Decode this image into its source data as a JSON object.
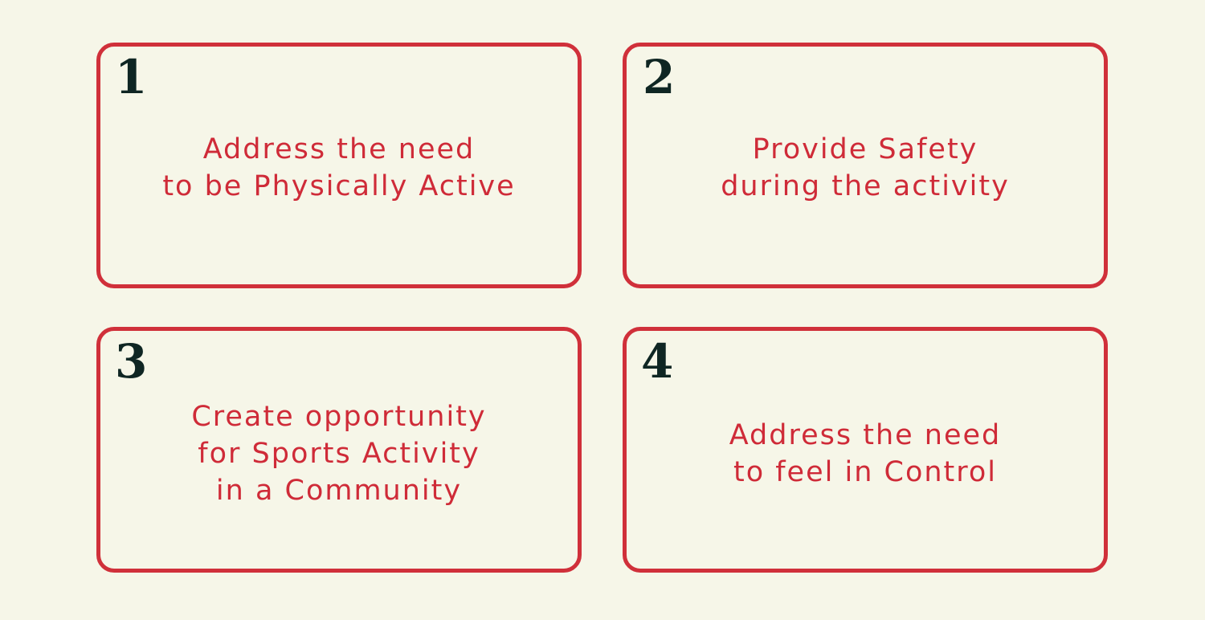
{
  "colors": {
    "background": "#f6f6e8",
    "border": "#d0303a",
    "text": "#cf2b38",
    "number": "#0f2623"
  },
  "cards": [
    {
      "number": "1",
      "text": "Address the need\nto be Physically Active"
    },
    {
      "number": "2",
      "text": "Provide Safety\nduring the activity"
    },
    {
      "number": "3",
      "text": "Create opportunity\nfor Sports Activity\nin a Community"
    },
    {
      "number": "4",
      "text": "Address the need\nto feel in Control"
    }
  ]
}
